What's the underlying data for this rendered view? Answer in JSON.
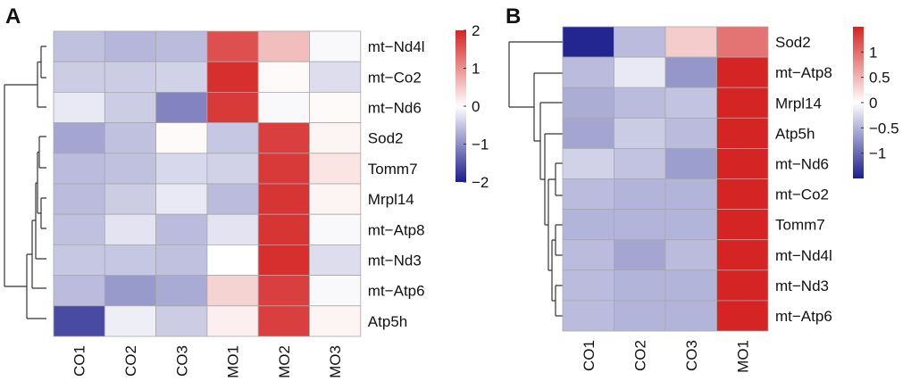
{
  "chart_data": [
    {
      "type": "heatmap",
      "panel_label": "A",
      "columns": [
        "CO1",
        "CO2",
        "CO3",
        "MO1",
        "MO2",
        "MO3"
      ],
      "rows": [
        "mt−Nd4l",
        "mt−Co2",
        "mt−Nd6",
        "Sod2",
        "Tomm7",
        "Mrpl14",
        "mt−Atp8",
        "mt−Nd3",
        "mt−Atp6",
        "Atp5h"
      ],
      "values": [
        [
          -0.55,
          -0.65,
          -0.6,
          1.6,
          0.6,
          -0.05
        ],
        [
          -0.45,
          -0.45,
          -0.4,
          1.9,
          0.05,
          -0.3
        ],
        [
          -0.2,
          -0.45,
          -1.1,
          1.8,
          -0.05,
          0.05
        ],
        [
          -0.8,
          -0.55,
          0.05,
          -0.5,
          1.75,
          0.1
        ],
        [
          -0.6,
          -0.55,
          -0.35,
          -0.4,
          1.8,
          0.25
        ],
        [
          -0.6,
          -0.45,
          -0.2,
          -0.6,
          1.85,
          0.1
        ],
        [
          -0.55,
          -0.25,
          -0.6,
          -0.25,
          1.85,
          -0.05
        ],
        [
          -0.5,
          -0.5,
          -0.55,
          0.0,
          1.9,
          -0.3
        ],
        [
          -0.6,
          -0.9,
          -0.75,
          0.4,
          1.75,
          -0.05
        ],
        [
          -1.6,
          -0.15,
          -0.45,
          0.15,
          1.75,
          0.1
        ]
      ],
      "color_scale": {
        "min": -2,
        "max": 2,
        "ticks": [
          2,
          1,
          0,
          -1,
          -2
        ],
        "tick_labels": [
          "2",
          "1",
          "0",
          "−1",
          "−2"
        ]
      },
      "row_dendrogram": true
    },
    {
      "type": "heatmap",
      "panel_label": "B",
      "columns": [
        "CO1",
        "CO2",
        "CO3",
        "MO1"
      ],
      "rows": [
        "Sod2",
        "mt−Atp8",
        "Mrpl14",
        "Atp5h",
        "mt−Nd6",
        "mt−Co2",
        "Tomm7",
        "mt−Nd4l",
        "mt−Nd3",
        "mt−Atp6"
      ],
      "values": [
        [
          -1.45,
          -0.45,
          0.35,
          0.95
        ],
        [
          -0.45,
          -0.15,
          -0.7,
          1.5
        ],
        [
          -0.55,
          -0.45,
          -0.4,
          1.5
        ],
        [
          -0.6,
          -0.35,
          -0.45,
          1.5
        ],
        [
          -0.3,
          -0.4,
          -0.65,
          1.5
        ],
        [
          -0.45,
          -0.5,
          -0.5,
          1.5
        ],
        [
          -0.5,
          -0.5,
          -0.5,
          1.5
        ],
        [
          -0.45,
          -0.6,
          -0.45,
          1.5
        ],
        [
          -0.45,
          -0.5,
          -0.5,
          1.5
        ],
        [
          -0.45,
          -0.5,
          -0.5,
          1.5
        ]
      ],
      "color_scale": {
        "min": -1.5,
        "max": 1.5,
        "ticks": [
          1,
          0.5,
          0,
          -0.5,
          -1
        ],
        "tick_labels": [
          "1",
          "0.5",
          "0",
          "−0.5",
          "−1"
        ]
      },
      "row_dendrogram": true
    }
  ]
}
